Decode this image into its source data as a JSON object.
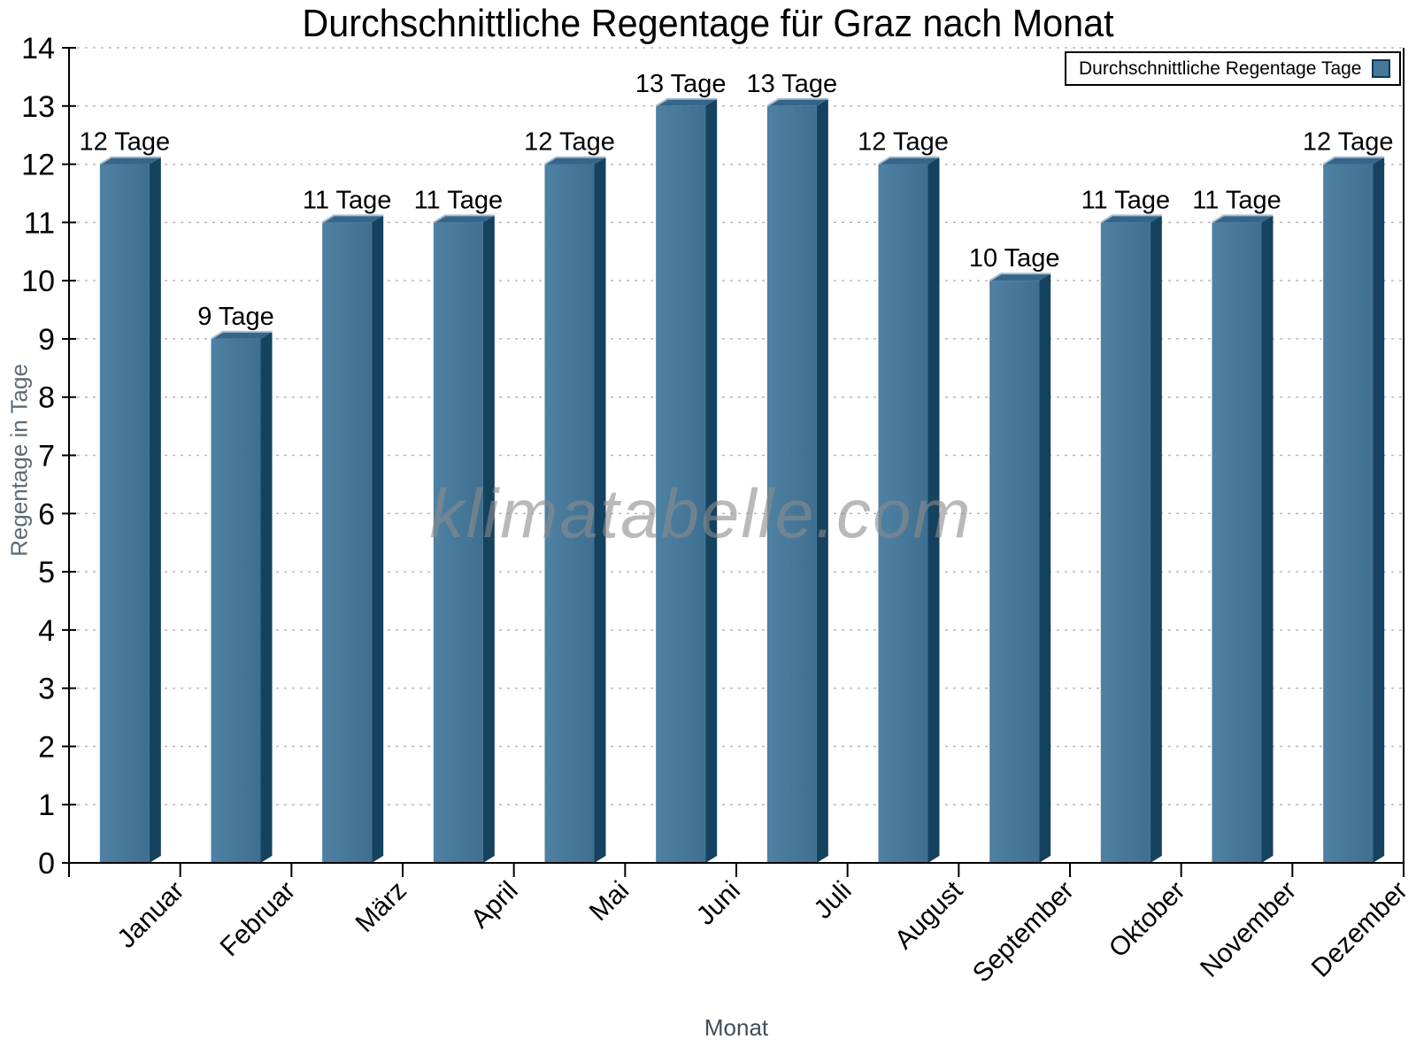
{
  "title": "Durchschnittliche Regentage für Graz nach Monat",
  "watermark": "klimatabelle.com",
  "legend": {
    "label": "Durchschnittliche Regentage Tage",
    "swatch_color": "#46789B"
  },
  "axes": {
    "x_label": "Monat",
    "y_label": "Regentage in Tage",
    "y_ticks": [
      0,
      1,
      2,
      3,
      4,
      5,
      6,
      7,
      8,
      9,
      10,
      11,
      12,
      13,
      14
    ]
  },
  "chart_data": {
    "type": "bar",
    "title": "Durchschnittliche Regentage für Graz nach Monat",
    "xlabel": "Monat",
    "ylabel": "Regentage in Tage",
    "categories": [
      "Januar",
      "Februar",
      "März",
      "April",
      "Mai",
      "Juni",
      "Juli",
      "August",
      "September",
      "Oktober",
      "November",
      "Dezember"
    ],
    "values": [
      12,
      9,
      11,
      11,
      12,
      13,
      13,
      12,
      10,
      11,
      11,
      12
    ],
    "point_labels": [
      "12 Tage",
      "9 Tage",
      "11 Tage",
      "11 Tage",
      "12 Tage",
      "13 Tage",
      "13 Tage",
      "12 Tage",
      "10 Tage",
      "11 Tage",
      "11 Tage",
      "12 Tage"
    ],
    "ylim": [
      0,
      14
    ],
    "grid": "horizontal dotted",
    "legend_position": "top-right",
    "colors": {
      "bar_front_light": "#4E81A3",
      "bar_front_dark": "#3F6F90",
      "bar_side": "#15425F",
      "bar_top": "#35658A",
      "bar_highlight": "#A7BECD",
      "grid_line": "#b9b9b9",
      "axis": "#000000"
    }
  }
}
